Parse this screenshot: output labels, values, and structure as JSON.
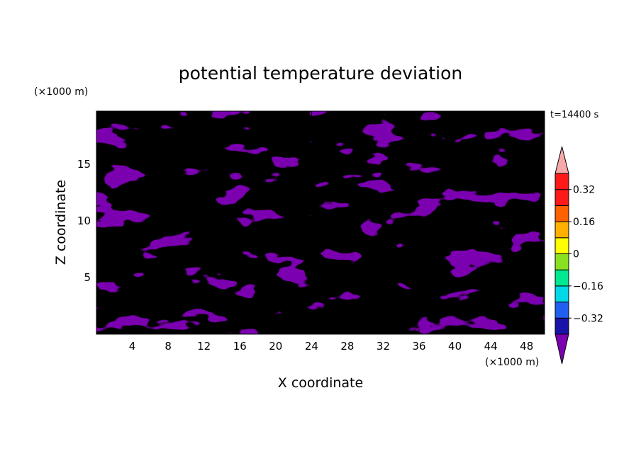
{
  "chart_data": {
    "type": "heatmap",
    "title": "potential temperature deviation",
    "xlabel": "X coordinate",
    "ylabel": "Z coordinate",
    "x_unit": "(×1000 m)",
    "z_unit": "(×1000 m)",
    "time_label": "t=14400 s",
    "xlim": [
      0,
      50
    ],
    "ylim": [
      0,
      19.7
    ],
    "x_ticks": [
      4,
      8,
      12,
      16,
      20,
      24,
      28,
      32,
      36,
      40,
      44,
      48
    ],
    "y_ticks": [
      5,
      10,
      15
    ],
    "colorbar": {
      "levels": [
        -0.4,
        -0.32,
        -0.24,
        -0.16,
        -0.08,
        0,
        0.08,
        0.16,
        0.24,
        0.32,
        0.4
      ],
      "colors": [
        "#7b00b0",
        "#1a13a8",
        "#2060f0",
        "#00d8e8",
        "#00e890",
        "#88e020",
        "#ffff00",
        "#ffb000",
        "#ff6000",
        "#ff1a1a",
        "#f7a8a8"
      ],
      "tick_labels": [
        "0.32",
        "0.16",
        "0",
        "-0.16",
        "-0.32"
      ],
      "tick_values": [
        0.32,
        0.16,
        0,
        -0.16,
        -0.32
      ],
      "extend": "both"
    },
    "grid": false
  }
}
